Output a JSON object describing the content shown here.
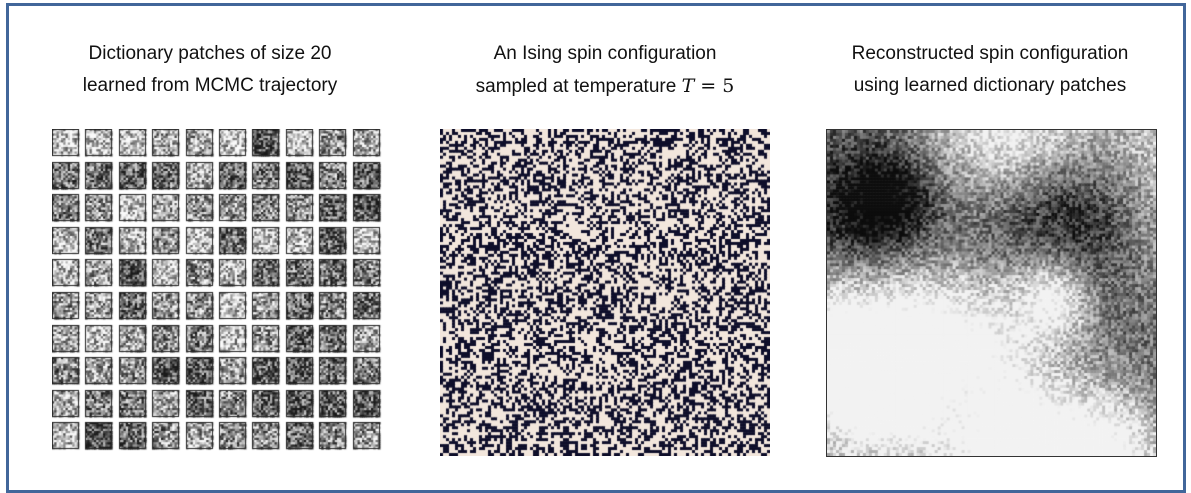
{
  "figure": {
    "frame_color": "#41669a",
    "panels": [
      {
        "id": "dictionary",
        "caption_lines": [
          "Dictionary patches of size 20",
          "learned from MCMC trajectory"
        ],
        "grid": {
          "rows": 10,
          "cols": 10
        }
      },
      {
        "id": "ising",
        "caption_lines": [
          "An Ising spin configuration",
          "sampled at temperature "
        ],
        "caption_math": {
          "symbol": "T",
          "relation": " = ",
          "value": "5"
        },
        "spin_colors": {
          "up": "#f2e6dc",
          "down": "#0e0e2a"
        }
      },
      {
        "id": "reconstruction",
        "caption_lines": [
          "Reconstructed spin configuration",
          "using learned dictionary patches"
        ],
        "colormap": "grayscale"
      }
    ]
  }
}
